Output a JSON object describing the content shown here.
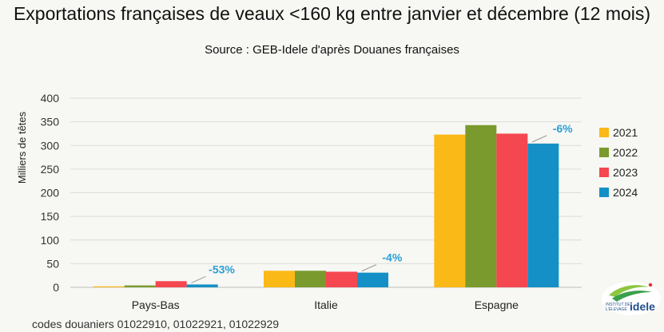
{
  "chart_data": {
    "type": "bar",
    "title": "Exportations françaises de veaux <160 kg entre janvier et décembre (12 mois)",
    "subtitle": "Source : GEB-Idele d'après Douanes françaises",
    "ylabel": "Milliers de têtes",
    "ylim": [
      0,
      400
    ],
    "yticks": [
      0,
      50,
      100,
      150,
      200,
      250,
      300,
      350,
      400
    ],
    "grid": true,
    "legend_position": "right",
    "categories": [
      "Pays-Bas",
      "Italie",
      "Espagne"
    ],
    "series": [
      {
        "name": "2021",
        "color": "#fbb917",
        "values": [
          2,
          35,
          323
        ]
      },
      {
        "name": "2022",
        "color": "#7a9a2e",
        "values": [
          4,
          35,
          343
        ]
      },
      {
        "name": "2023",
        "color": "#f4474f",
        "values": [
          13,
          33,
          325
        ]
      },
      {
        "name": "2024",
        "color": "#1590c6",
        "values": [
          6,
          31,
          304
        ]
      }
    ],
    "annotations": [
      "-53%",
      "-4%",
      "-6%"
    ],
    "annotation_color": "#2a9fd6",
    "footnote": "codes douaniers 01022910, 01022921, 01022929"
  },
  "logo": {
    "line1": "INSTITUT DE",
    "line2": "L'ÉLEVAGE",
    "brand": "idele"
  }
}
